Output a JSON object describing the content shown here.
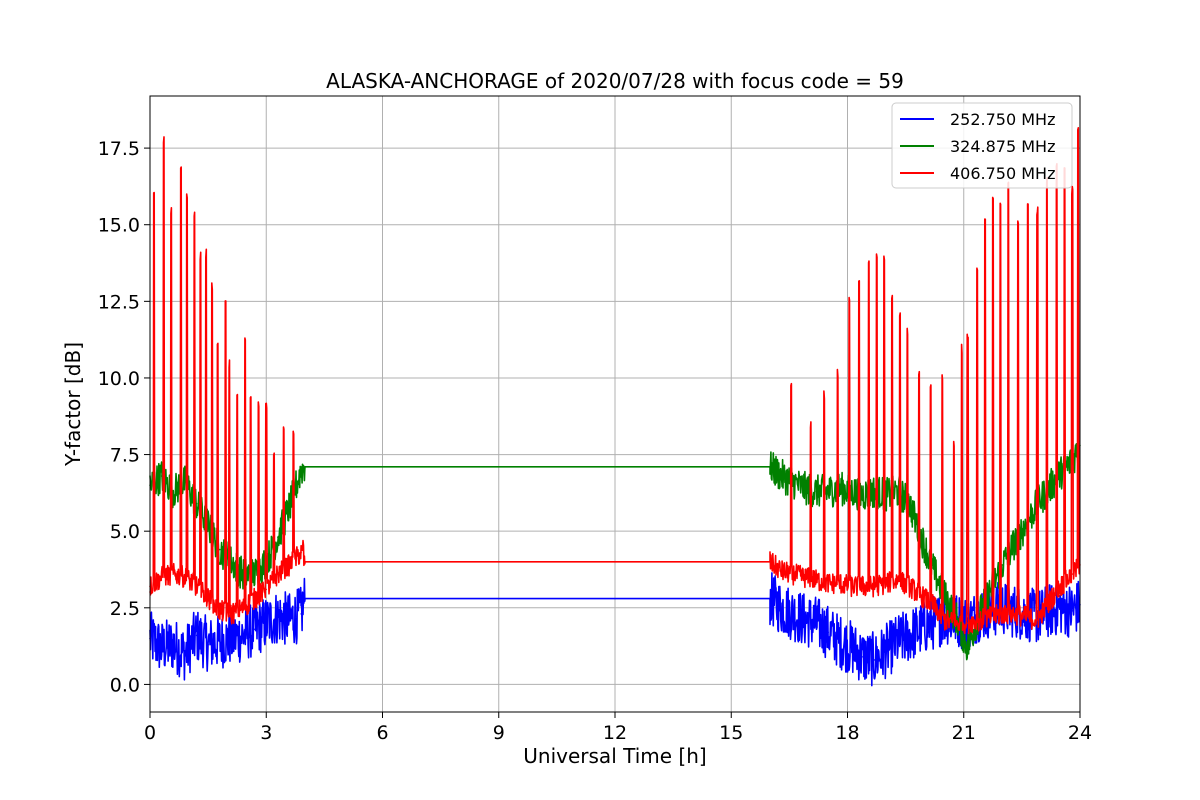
{
  "chart_data": {
    "type": "line",
    "title": "ALASKA-ANCHORAGE of 2020/07/28 with focus code = 59",
    "xlabel": "Universal Time [h]",
    "ylabel": "Y-factor [dB]",
    "xlim": [
      0,
      24
    ],
    "ylim": [
      -0.9,
      19.2
    ],
    "xticks": [
      0,
      3,
      6,
      9,
      12,
      15,
      18,
      21,
      24
    ],
    "xtick_labels": [
      "0",
      "3",
      "6",
      "9",
      "12",
      "15",
      "18",
      "21",
      "24"
    ],
    "yticks": [
      0,
      2.5,
      5,
      7.5,
      10,
      12.5,
      15,
      17.5
    ],
    "ytick_labels": [
      "0.0",
      "2.5",
      "5.0",
      "7.5",
      "10.0",
      "12.5",
      "15.0",
      "17.5"
    ],
    "grid": true,
    "legend_position": "top-right",
    "series": [
      {
        "name": "252.750 MHz",
        "color": "#0000ff",
        "x": [
          0,
          0.3,
          0.6,
          0.9,
          1.2,
          1.5,
          1.8,
          2.1,
          2.4,
          2.7,
          3.0,
          3.3,
          3.6,
          3.9,
          4.0,
          16.0,
          16.3,
          16.6,
          16.9,
          17.2,
          17.5,
          17.8,
          18.1,
          18.4,
          18.7,
          19.0,
          19.3,
          19.6,
          19.9,
          20.2,
          20.5,
          20.8,
          21.1,
          21.4,
          21.7,
          22.0,
          22.3,
          22.6,
          22.9,
          23.2,
          23.5,
          23.8,
          24.0
        ],
        "values": [
          1.5,
          1.2,
          1.3,
          1.0,
          1.6,
          1.3,
          1.4,
          1.5,
          1.6,
          1.8,
          2.0,
          2.2,
          2.1,
          2.3,
          2.8,
          2.8,
          2.5,
          2.3,
          2.1,
          2.0,
          1.7,
          1.4,
          1.2,
          0.9,
          0.8,
          1.1,
          1.4,
          1.6,
          1.8,
          2.0,
          2.2,
          2.1,
          2.0,
          2.3,
          2.4,
          2.5,
          2.4,
          2.3,
          2.2,
          2.4,
          2.5,
          2.4,
          2.6
        ]
      },
      {
        "name": "324.875 MHz",
        "color": "#008000",
        "x": [
          0,
          0.3,
          0.6,
          0.9,
          1.2,
          1.5,
          1.8,
          2.1,
          2.4,
          2.7,
          3.0,
          3.3,
          3.6,
          3.9,
          4.0,
          16.0,
          16.3,
          16.6,
          16.9,
          17.2,
          17.5,
          17.8,
          18.1,
          18.4,
          18.7,
          19.0,
          19.3,
          19.6,
          19.9,
          20.2,
          20.5,
          20.8,
          21.1,
          21.4,
          21.7,
          22.0,
          22.3,
          22.6,
          22.9,
          23.2,
          23.5,
          23.8,
          24.0
        ],
        "values": [
          6.5,
          6.8,
          6.3,
          6.6,
          5.9,
          5.2,
          4.4,
          4.0,
          3.6,
          3.6,
          4.0,
          4.8,
          5.8,
          7.0,
          7.1,
          7.1,
          6.8,
          6.6,
          6.4,
          6.3,
          6.3,
          6.4,
          6.3,
          6.2,
          6.3,
          6.2,
          6.3,
          5.9,
          4.8,
          3.8,
          2.9,
          2.2,
          1.2,
          2.3,
          3.1,
          3.9,
          4.6,
          5.2,
          5.9,
          6.4,
          6.9,
          7.3,
          7.8
        ]
      },
      {
        "name": "406.750 MHz",
        "color": "#ff0000",
        "x": [
          0,
          0.3,
          0.6,
          0.9,
          1.2,
          1.5,
          1.8,
          2.1,
          2.4,
          2.7,
          3.0,
          3.3,
          3.6,
          3.9,
          4.0,
          16.0,
          16.3,
          16.6,
          16.9,
          17.2,
          17.5,
          17.8,
          18.1,
          18.4,
          18.7,
          19.0,
          19.3,
          19.6,
          19.9,
          20.2,
          20.5,
          20.8,
          21.1,
          21.4,
          21.7,
          22.0,
          22.3,
          22.6,
          22.9,
          23.2,
          23.5,
          23.8,
          24.0
        ],
        "values": [
          3.2,
          3.5,
          3.6,
          3.5,
          3.2,
          2.8,
          2.4,
          2.3,
          2.5,
          2.8,
          3.1,
          3.6,
          3.9,
          4.3,
          4.0,
          4.0,
          3.7,
          3.6,
          3.5,
          3.4,
          3.3,
          3.3,
          3.2,
          3.2,
          3.2,
          3.3,
          3.4,
          3.2,
          2.9,
          2.6,
          2.1,
          2.0,
          2.0,
          2.1,
          2.2,
          2.3,
          2.3,
          2.2,
          2.1,
          2.7,
          3.2,
          3.6,
          3.9
        ],
        "peaks_x": [
          0.1,
          0.35,
          0.55,
          0.8,
          0.95,
          1.15,
          1.3,
          1.45,
          1.6,
          1.75,
          1.95,
          2.05,
          2.25,
          2.45,
          2.6,
          2.8,
          3.0,
          3.2,
          3.45,
          3.7,
          3.95,
          16.55,
          17.05,
          17.4,
          17.75,
          18.05,
          18.3,
          18.55,
          18.75,
          18.95,
          19.15,
          19.35,
          19.55,
          19.85,
          20.15,
          20.45,
          20.75,
          20.95,
          21.1,
          21.35,
          21.55,
          21.75,
          21.95,
          22.15,
          22.4,
          22.65,
          22.9,
          23.15,
          23.4,
          23.6,
          23.8,
          23.95
        ],
        "peaks_values": [
          16.2,
          17.9,
          15.6,
          17.0,
          16.0,
          15.5,
          14.1,
          14.2,
          13.1,
          11.2,
          12.7,
          10.6,
          9.5,
          11.4,
          9.5,
          9.3,
          9.2,
          7.7,
          8.4,
          8.3,
          4.8,
          9.9,
          8.6,
          9.6,
          10.3,
          12.7,
          13.2,
          13.9,
          14.2,
          14.0,
          12.8,
          12.2,
          11.7,
          10.4,
          10.0,
          10.2,
          8.0,
          11.1,
          11.6,
          13.6,
          15.3,
          16.0,
          15.9,
          16.4,
          15.2,
          15.9,
          15.6,
          16.6,
          17.0,
          16.9,
          16.3,
          18.2
        ]
      }
    ]
  }
}
